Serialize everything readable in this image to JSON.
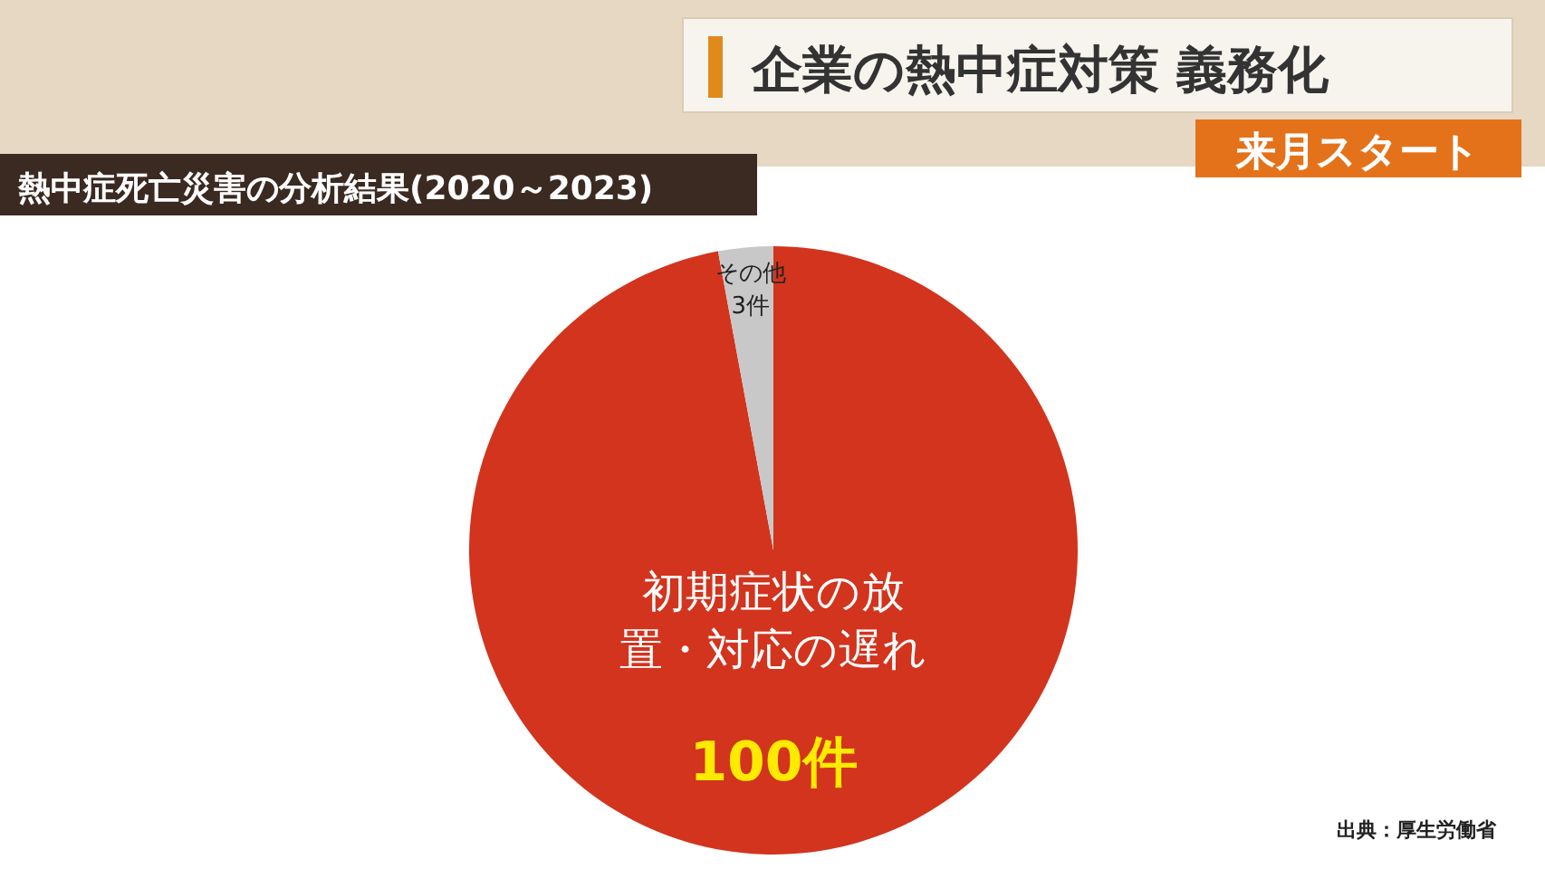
{
  "chart_data": {
    "type": "pie",
    "title": "企業の熱中症対策 義務化",
    "subtitle": "来月スタート",
    "annotations": [
      "熱中症死亡災害の分析結果(2020～2023)",
      "出典：厚生労働省"
    ],
    "categories": [
      "初期症状の放置・対応の遅れ",
      "その他"
    ],
    "values": [
      100,
      3
    ],
    "value_labels": [
      "100件",
      "3件"
    ],
    "colors": [
      "#d2341e",
      "#c8c8c8"
    ]
  }
}
